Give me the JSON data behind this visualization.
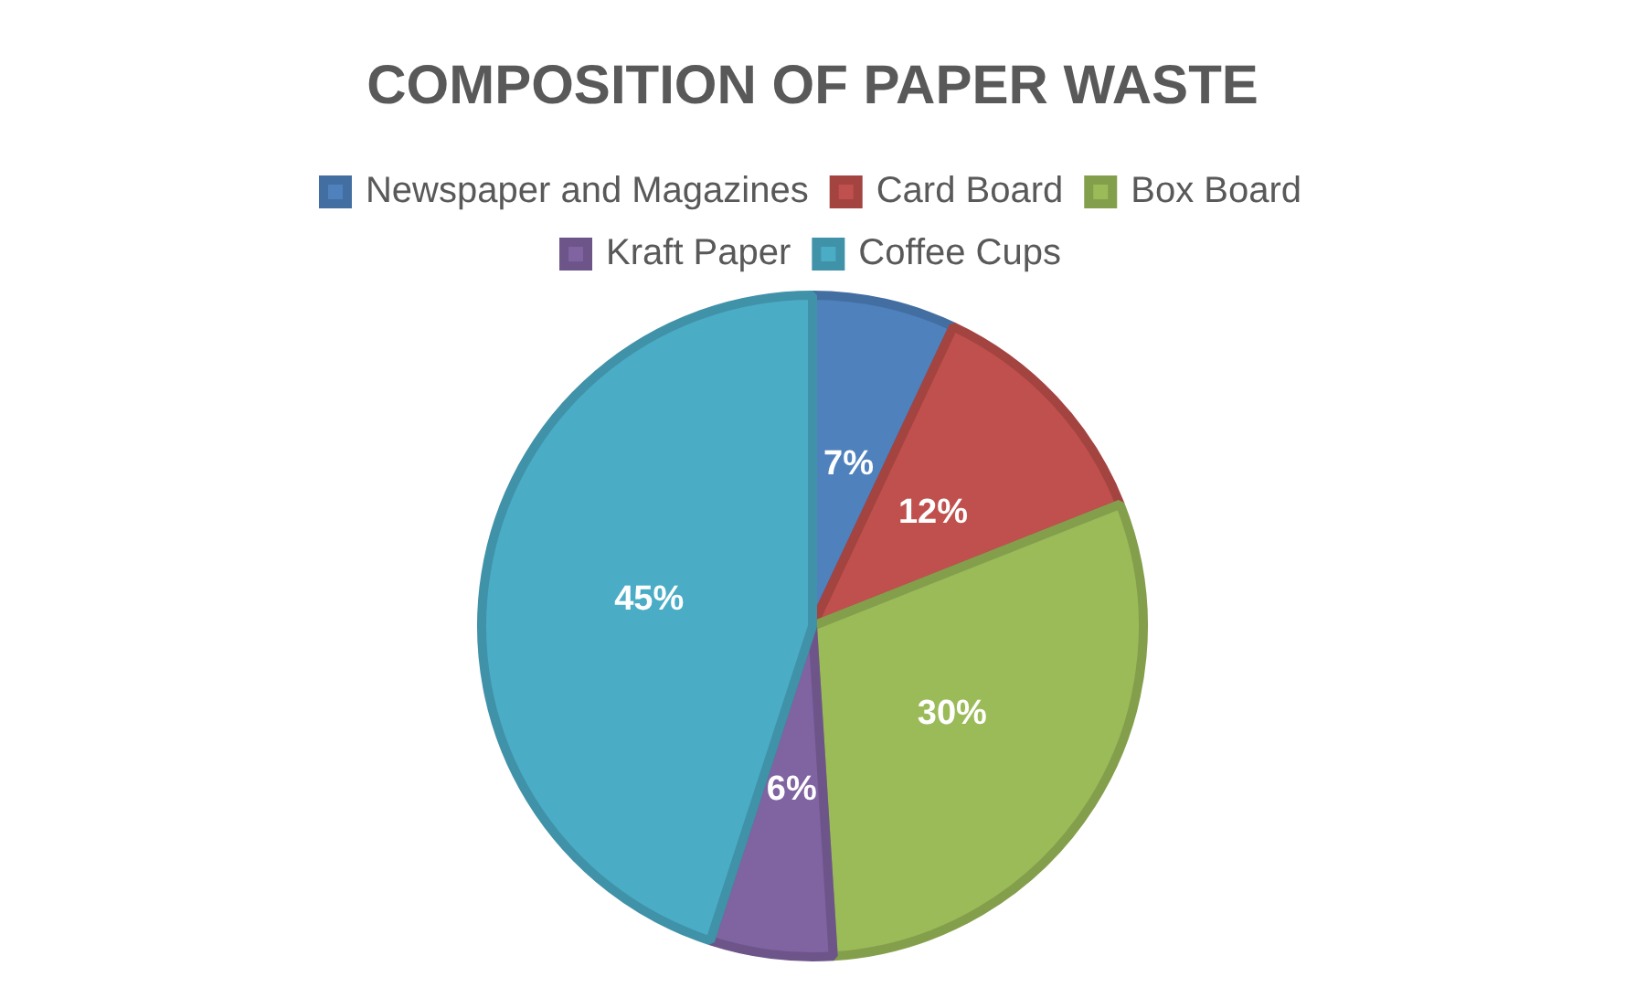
{
  "chart_data": {
    "type": "pie",
    "title": "COMPOSITION OF PAPER WASTE",
    "categories": [
      "Newspaper and Magazines",
      "Card Board",
      "Box Board",
      "Kraft Paper",
      "Coffee Cups"
    ],
    "values": [
      7,
      12,
      30,
      6,
      45
    ],
    "colors": [
      "#4f81bd",
      "#c0504d",
      "#9bbb59",
      "#8064a2",
      "#4bacc6"
    ],
    "value_labels": [
      "7%",
      "12%",
      "30%",
      "6%",
      "45%"
    ],
    "legend": "top"
  }
}
